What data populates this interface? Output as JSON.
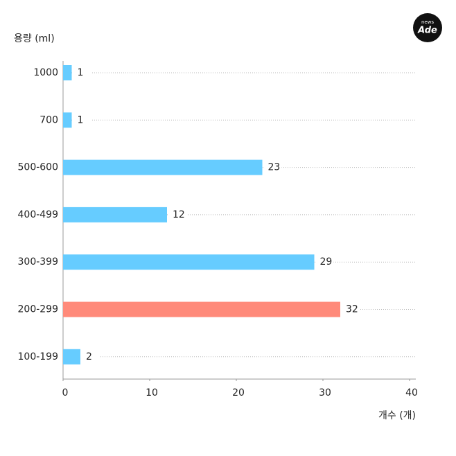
{
  "chart_data": {
    "type": "hbar",
    "y_label": "용량 (ml)",
    "x_label": "개수 (개)",
    "logo": [
      "news",
      "Ade"
    ],
    "categories": [
      "1000",
      "700",
      "500-600",
      "400-499",
      "300-399",
      "200-299",
      "100-199"
    ],
    "values": [
      1,
      1,
      23,
      12,
      29,
      32,
      2
    ],
    "colors": [
      "#66ccff",
      "#66ccff",
      "#66ccff",
      "#66ccff",
      "#66ccff",
      "#ff8a7a",
      "#66ccff"
    ],
    "xlim": [
      0,
      40
    ],
    "xticks": [
      0,
      10,
      20,
      30,
      40
    ]
  }
}
